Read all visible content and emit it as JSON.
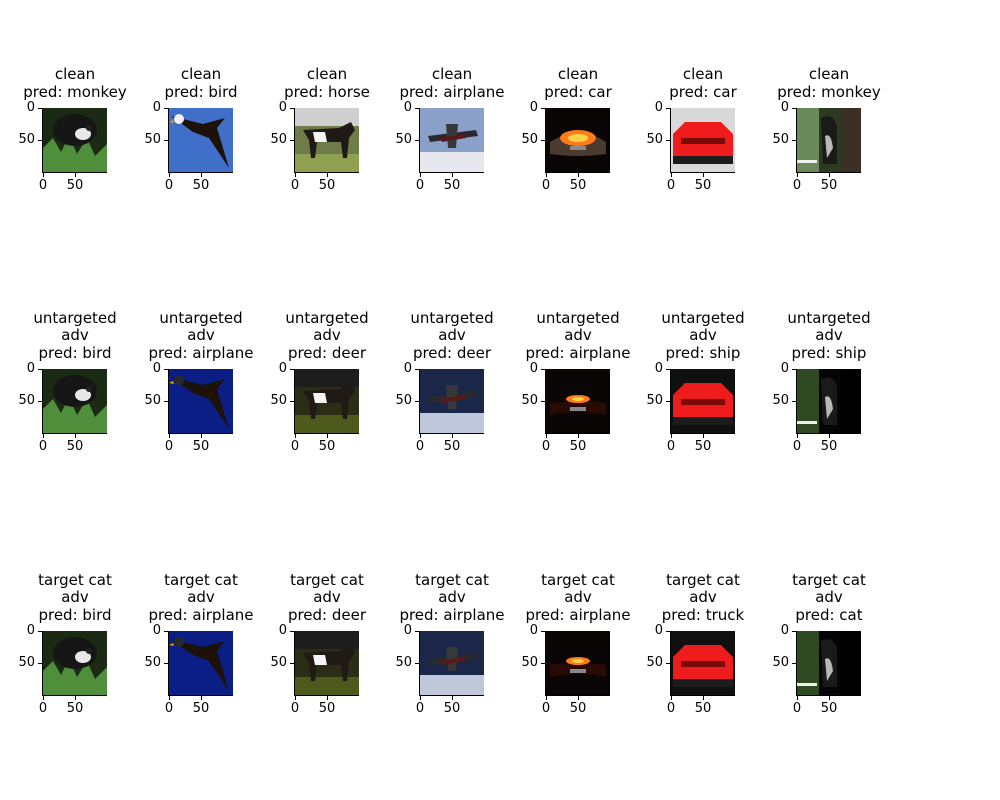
{
  "axis": {
    "y_ticks": [
      "0",
      "50"
    ],
    "x_ticks": [
      "0",
      "50"
    ]
  },
  "rows": [
    {
      "name": "clean",
      "panels": [
        {
          "title": [
            "clean",
            "pred: monkey"
          ],
          "image": "monkey among leaves"
        },
        {
          "title": [
            "clean",
            "pred: bird"
          ],
          "image": "eagle in blue sky"
        },
        {
          "title": [
            "clean",
            "pred: horse"
          ],
          "image": "horse on grass"
        },
        {
          "title": [
            "clean",
            "pred: airplane"
          ],
          "image": "biplane in sky"
        },
        {
          "title": [
            "clean",
            "pred: car"
          ],
          "image": "car front at night"
        },
        {
          "title": [
            "clean",
            "pred: car"
          ],
          "image": "red sports car"
        },
        {
          "title": [
            "clean",
            "pred: monkey"
          ],
          "image": "monkey by tree"
        }
      ]
    },
    {
      "name": "untargeted adv",
      "panels": [
        {
          "title": [
            "untargeted",
            "adv",
            "pred: bird"
          ],
          "image": "monkey among leaves"
        },
        {
          "title": [
            "untargeted",
            "adv",
            "pred: airplane"
          ],
          "image": "eagle in blue sky"
        },
        {
          "title": [
            "untargeted",
            "adv",
            "pred: deer"
          ],
          "image": "horse on grass"
        },
        {
          "title": [
            "untargeted",
            "adv",
            "pred: deer"
          ],
          "image": "biplane in sky"
        },
        {
          "title": [
            "untargeted",
            "adv",
            "pred: airplane"
          ],
          "image": "car front at night"
        },
        {
          "title": [
            "untargeted",
            "adv",
            "pred: ship"
          ],
          "image": "red sports car"
        },
        {
          "title": [
            "untargeted",
            "adv",
            "pred: ship"
          ],
          "image": "monkey by tree"
        }
      ]
    },
    {
      "name": "target cat adv",
      "panels": [
        {
          "title": [
            "target cat",
            "adv",
            "pred: bird"
          ],
          "image": "monkey among leaves"
        },
        {
          "title": [
            "target cat",
            "adv",
            "pred: airplane"
          ],
          "image": "eagle in blue sky"
        },
        {
          "title": [
            "target cat",
            "adv",
            "pred: deer"
          ],
          "image": "horse on grass"
        },
        {
          "title": [
            "target cat",
            "adv",
            "pred: airplane"
          ],
          "image": "biplane in sky"
        },
        {
          "title": [
            "target cat",
            "adv",
            "pred: airplane"
          ],
          "image": "car front at night"
        },
        {
          "title": [
            "target cat",
            "adv",
            "pred: truck"
          ],
          "image": "red sports car"
        },
        {
          "title": [
            "target cat",
            "adv",
            "pred: cat"
          ],
          "image": "monkey by tree"
        }
      ]
    }
  ]
}
